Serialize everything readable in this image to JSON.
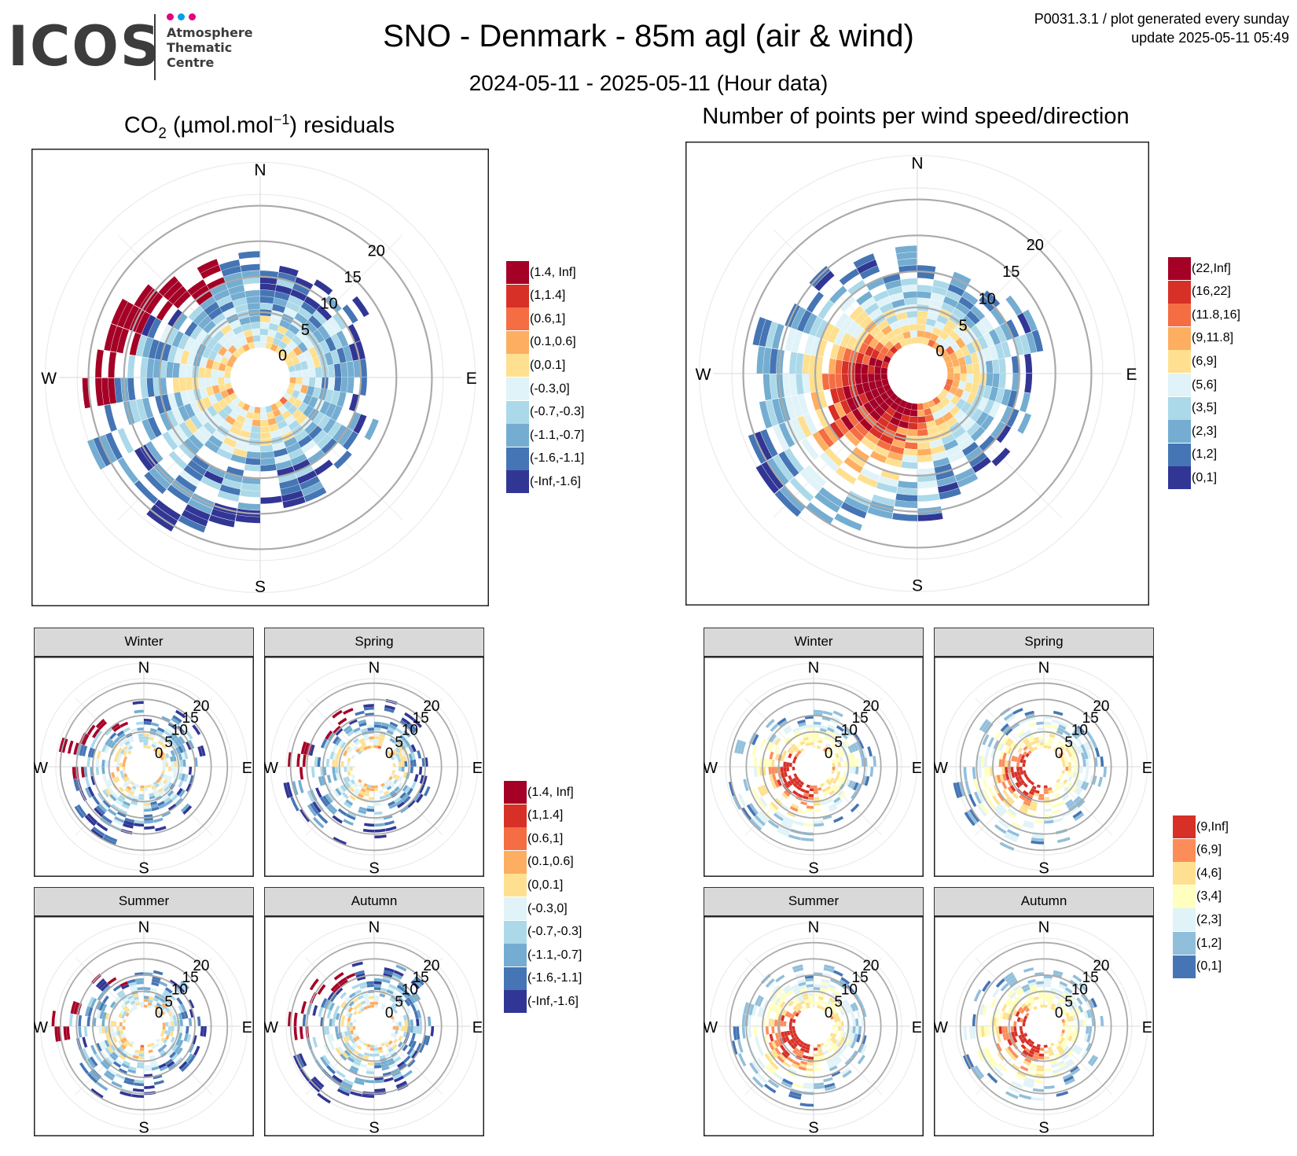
{
  "header": {
    "logo": "ICOS",
    "logo_sub": [
      "Atmosphere",
      "Thematic",
      "Centre"
    ],
    "title": "SNO - Denmark - 85m agl (air & wind)",
    "subtitle": "2024-05-11 - 2025-05-11 (Hour data)",
    "meta_line1": "P0031.3.1 / plot generated every sunday",
    "meta_line2": "update  2025-05-11 05:49"
  },
  "colors": {
    "dots": [
      "#e5007d",
      "#00a0e3",
      "#e5007d"
    ],
    "scale10": [
      "#a50026",
      "#d73027",
      "#f46d43",
      "#fdae61",
      "#fee090",
      "#e0f3f8",
      "#abd9e9",
      "#74add1",
      "#4575b4",
      "#313695"
    ],
    "scale7": [
      "#d73027",
      "#fc8d59",
      "#fee090",
      "#ffffbf",
      "#e0f3f8",
      "#91bfdb",
      "#4575b4"
    ]
  },
  "chart_data": [
    {
      "type": "heatmap",
      "id": "co2_residuals",
      "title_main": "CO",
      "title_sub": "2",
      "title_mid": " (µmol.mol",
      "title_sup": "−1",
      "title_end": ") residuals",
      "polar": true,
      "compass": [
        "N",
        "E",
        "S",
        "W"
      ],
      "r_ticks": [
        "0",
        "5",
        "10",
        "15",
        "20"
      ],
      "rlim": [
        0,
        25
      ],
      "legend": [
        "(1.4, Inf]",
        "(1,1.4]",
        "(0.6,1]",
        "(0.1,0.6]",
        "(0,0.1]",
        "(-0.3,0]",
        "(-0.7,-0.3]",
        "(-1.1,-0.7]",
        "(-1.6,-1.1]",
        "(-Inf,-1.6]"
      ],
      "legend_position": "right"
    },
    {
      "type": "heatmap",
      "id": "count_per_wind",
      "title": "Number of points per wind speed/direction",
      "polar": true,
      "compass": [
        "N",
        "E",
        "S",
        "W"
      ],
      "r_ticks": [
        "0",
        "5",
        "10",
        "15",
        "20"
      ],
      "rlim": [
        0,
        25
      ],
      "legend": [
        "(22,Inf]",
        "(16,22]",
        "(11.8,16]",
        "(9,11.8]",
        "(6,9]",
        "(5,6]",
        "(3,5]",
        "(2,3]",
        "(1,2]",
        "(0,1]"
      ],
      "legend_position": "right"
    },
    {
      "type": "heatmap",
      "id": "co2_seasonal",
      "polar": true,
      "facets": [
        "Winter",
        "Spring",
        "Summer",
        "Autumn"
      ],
      "compass": [
        "N",
        "E",
        "S",
        "W"
      ],
      "r_ticks": [
        "0",
        "5",
        "10",
        "15",
        "20"
      ],
      "legend": [
        "(1.4, Inf]",
        "(1,1.4]",
        "(0.6,1]",
        "(0.1,0.6]",
        "(0,0.1]",
        "(-0.3,0]",
        "(-0.7,-0.3]",
        "(-1.1,-0.7]",
        "(-1.6,-1.1]",
        "(-Inf,-1.6]"
      ],
      "legend_position": "right"
    },
    {
      "type": "heatmap",
      "id": "count_seasonal",
      "polar": true,
      "facets": [
        "Winter",
        "Spring",
        "Summer",
        "Autumn"
      ],
      "compass": [
        "N",
        "E",
        "S",
        "W"
      ],
      "r_ticks": [
        "0",
        "5",
        "10",
        "15",
        "20"
      ],
      "legend": [
        "(9,Inf]",
        "(6,9]",
        "(4,6]",
        "(3,4]",
        "(2,3]",
        "(1,2]",
        "(0,1]"
      ],
      "legend_position": "right"
    }
  ]
}
